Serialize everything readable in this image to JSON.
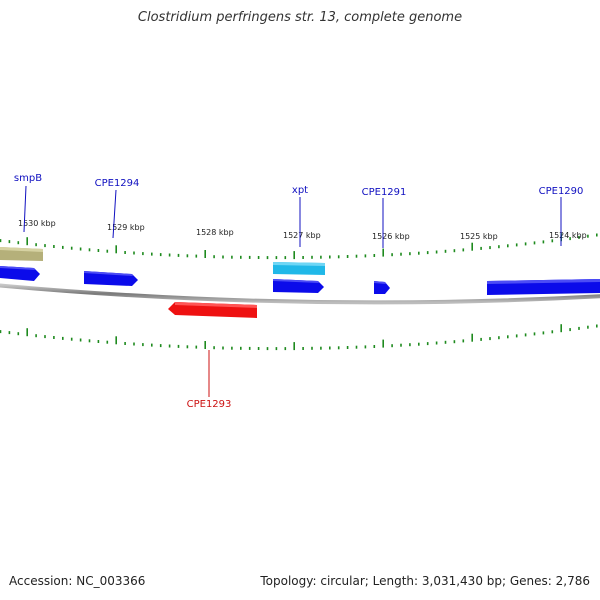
{
  "title": "Clostridium perfringens str. 13, complete genome",
  "footer": {
    "accession": "Accession: NC_003366",
    "summary": "Topology: circular; Length: 3,031,430 bp; Genes: 2,786"
  },
  "colors": {
    "forward_gene": "#0b0bea",
    "reverse_gene": "#ee1111",
    "highlight_gene": "#20b8e8",
    "other_feature": "#b5b07a",
    "tick": "#1e8a1e",
    "backbone": "#8c8c8c",
    "forward_label": "#1010c0",
    "reverse_label": "#cc1111"
  },
  "kbp_scale": [
    {
      "label": "1530 kbp"
    },
    {
      "label": "1529 kbp"
    },
    {
      "label": "1528 kbp"
    },
    {
      "label": "1527 kbp"
    },
    {
      "label": "1526 kbp"
    },
    {
      "label": "1525 kbp"
    },
    {
      "label": "1524 kbp"
    }
  ],
  "gene_labels": [
    {
      "name": "smpB",
      "strand": "forward"
    },
    {
      "name": "CPE1294",
      "strand": "forward"
    },
    {
      "name": "xpt",
      "strand": "forward"
    },
    {
      "name": "CPE1291",
      "strand": "forward"
    },
    {
      "name": "CPE1290",
      "strand": "forward"
    },
    {
      "name": "CPE1293",
      "strand": "reverse"
    }
  ]
}
